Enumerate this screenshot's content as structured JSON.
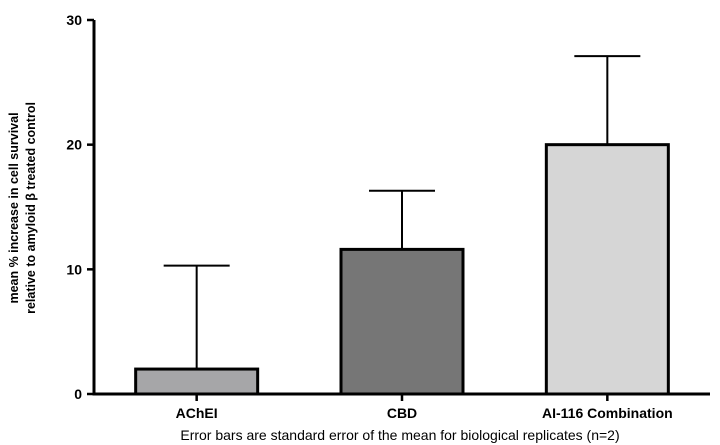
{
  "chart_data": {
    "type": "bar",
    "title": "",
    "categories": [
      "AChEI",
      "CBD",
      "AI-116 Combination"
    ],
    "values": [
      2,
      11.6,
      20
    ],
    "error_upper": [
      8.3,
      4.7,
      7.1
    ],
    "bar_colors": [
      "#a6a6a8",
      "#767676",
      "#d6d6d6"
    ],
    "ylabel_lines": [
      "mean % increase in cell survival",
      "relative to amyloid β treated control"
    ],
    "xlabel": "",
    "ylim": [
      0,
      30
    ],
    "yticks": [
      0,
      10,
      20,
      30
    ],
    "ytick_labels": [
      "0",
      "10",
      "20",
      "30"
    ],
    "footnote": "Error bars are standard error of the mean for biological replicates (n=2)",
    "grid": false
  }
}
